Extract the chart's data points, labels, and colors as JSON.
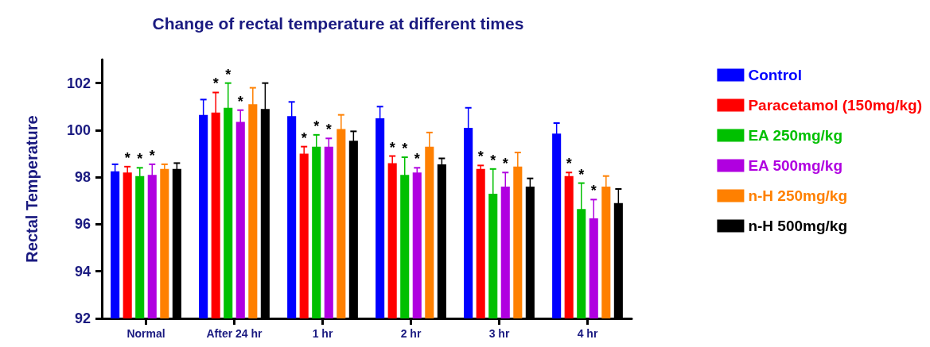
{
  "chart_data": {
    "type": "bar",
    "title": "Change of rectal temperature at different times",
    "ylabel": "Rectal Temperature",
    "categories": [
      "Normal",
      "After 24 hr",
      "1 hr",
      "2 hr",
      "3 hr",
      "4 hr"
    ],
    "ylim": [
      92,
      103
    ],
    "yticks": [
      92,
      94,
      96,
      98,
      100,
      102
    ],
    "grid": false,
    "legend": "right",
    "series": [
      {
        "name": "Control",
        "color": "#0000ff",
        "values": [
          98.25,
          100.65,
          100.6,
          100.5,
          100.1,
          99.85
        ],
        "errors": [
          0.3,
          0.65,
          0.6,
          0.5,
          0.85,
          0.45
        ]
      },
      {
        "name": "Paracetamol (150mg/kg)",
        "color": "#ff0000",
        "values": [
          98.2,
          100.75,
          99.0,
          98.6,
          98.35,
          98.05
        ],
        "errors": [
          0.25,
          0.85,
          0.3,
          0.3,
          0.15,
          0.15
        ],
        "value_labels": [
          "*",
          "*",
          "*",
          "*",
          "*",
          "*"
        ]
      },
      {
        "name": "EA 250mg/kg",
        "color": "#00c000",
        "values": [
          98.05,
          100.95,
          99.3,
          98.1,
          97.3,
          96.65
        ],
        "errors": [
          0.35,
          1.05,
          0.5,
          0.75,
          1.05,
          1.1
        ],
        "value_labels": [
          "*",
          "*",
          "*",
          "*",
          "*",
          "*"
        ]
      },
      {
        "name": "EA 500mg/kg",
        "color": "#b000e0",
        "values": [
          98.1,
          100.35,
          99.3,
          98.2,
          97.6,
          96.25
        ],
        "errors": [
          0.45,
          0.5,
          0.35,
          0.2,
          0.6,
          0.8
        ],
        "value_labels": [
          "*",
          "*",
          "*",
          "*",
          "*",
          "*"
        ]
      },
      {
        "name": "n-H 250mg/kg",
        "color": "#ff8000",
        "values": [
          98.35,
          101.1,
          100.05,
          99.3,
          98.45,
          97.6
        ],
        "errors": [
          0.2,
          0.7,
          0.6,
          0.6,
          0.6,
          0.45
        ]
      },
      {
        "name": "n-H 500mg/kg",
        "color": "#000000",
        "values": [
          98.35,
          100.9,
          99.55,
          98.55,
          97.6,
          96.9
        ],
        "errors": [
          0.25,
          1.1,
          0.4,
          0.25,
          0.35,
          0.6
        ]
      }
    ]
  }
}
